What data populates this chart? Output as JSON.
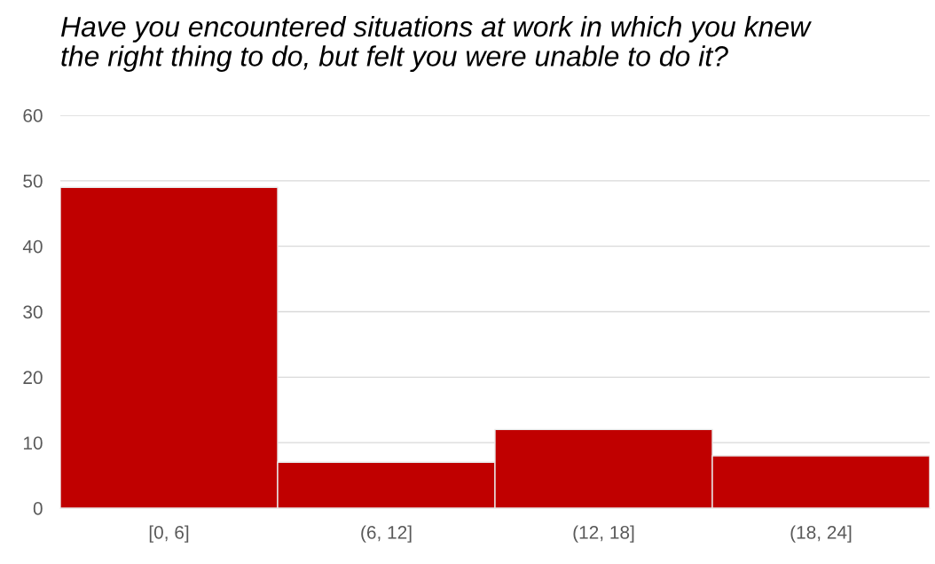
{
  "chart_data": {
    "type": "bar",
    "title": "Have you encountered situations at work in which you knew\nthe right thing to do, but felt you were unable to do it?",
    "categories": [
      "[0, 6]",
      "(6, 12]",
      "(12, 18]",
      "(18, 24]"
    ],
    "values": [
      49,
      7,
      12,
      8
    ],
    "color": "#c00000",
    "ylim": [
      0,
      60
    ],
    "yticks": [
      0,
      10,
      20,
      30,
      40,
      50,
      60
    ],
    "grid": "y",
    "legend": false
  }
}
